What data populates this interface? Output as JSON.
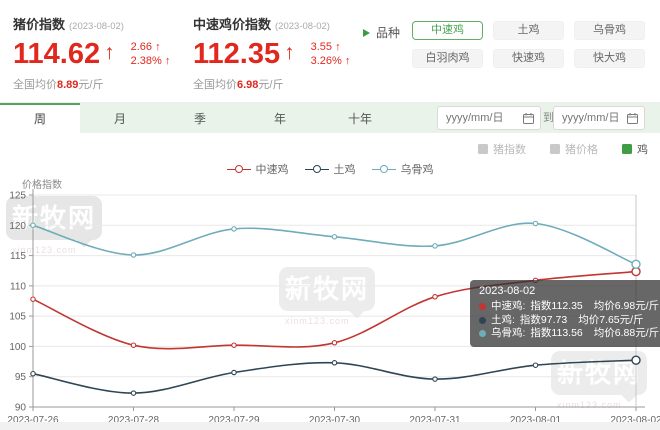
{
  "colors": {
    "accent_green": "#55a45a",
    "accent_red": "#e0281e",
    "grid": "#e8e8e8",
    "axis": "#999999"
  },
  "header": {
    "pig": {
      "title": "猪价指数",
      "date": "(2023-08-02)",
      "value": "114.62",
      "arrow": "↑",
      "delta": "2.66 ↑",
      "delta_pct": "2.38% ↑",
      "avg_label": "全国均价",
      "avg_value": "8.89",
      "avg_unit": "元/斤"
    },
    "chicken": {
      "title": "中速鸡价指数",
      "date": "(2023-08-02)",
      "value": "112.35",
      "arrow": "↑",
      "delta": "3.55 ↑",
      "delta_pct": "3.26% ↑",
      "avg_label": "全国均价",
      "avg_value": "6.98",
      "avg_unit": "元/斤"
    },
    "breed": {
      "label": "品种",
      "options": [
        {
          "label": "中速鸡",
          "active": true
        },
        {
          "label": "土鸡",
          "active": false
        },
        {
          "label": "乌骨鸡",
          "active": false
        },
        {
          "label": "白羽肉鸡",
          "active": false
        },
        {
          "label": "快速鸡",
          "active": false
        },
        {
          "label": "快大鸡",
          "active": false
        }
      ]
    }
  },
  "tabs": [
    {
      "label": "周",
      "active": true
    },
    {
      "label": "月",
      "active": false
    },
    {
      "label": "季",
      "active": false
    },
    {
      "label": "年",
      "active": false
    },
    {
      "label": "十年",
      "active": false
    }
  ],
  "date_filter": {
    "from_placeholder": "yyyy/mm/日",
    "to_label": "到",
    "to_placeholder": "yyyy/mm/日"
  },
  "toggles": [
    {
      "label": "猪指数",
      "checked": false
    },
    {
      "label": "猪价格",
      "checked": false
    },
    {
      "label": "鸡",
      "checked": true
    }
  ],
  "watermark": {
    "text": "新牧网",
    "url": "xinm123.com"
  },
  "tooltip": {
    "title": "2023-08-02",
    "rows": [
      {
        "name": "中速鸡:",
        "index": "指数112.35",
        "price": "均价6.98元/斤",
        "color": "#c23531"
      },
      {
        "name": "土鸡:",
        "index": "指数97.73",
        "price": "均价7.65元/斤",
        "color": "#2f4554"
      },
      {
        "name": "乌骨鸡:",
        "index": "指数113.56",
        "price": "均价6.88元/斤",
        "color": "#6fadba"
      }
    ]
  },
  "chart_data": {
    "type": "line",
    "title": "",
    "xlabel": "",
    "ylabel": "价格指数",
    "ylim": [
      90,
      125
    ],
    "ytick_step": 5,
    "grid": true,
    "smooth": true,
    "legend_position": "top",
    "categories": [
      "2023-07-26",
      "2023-07-28",
      "2023-07-29",
      "2023-07-30",
      "2023-07-31",
      "2023-08-01",
      "2023-08-02"
    ],
    "series": [
      {
        "name": "中速鸡",
        "color": "#c23531",
        "values": [
          107.8,
          100.2,
          100.2,
          100.6,
          108.2,
          110.9,
          112.35
        ]
      },
      {
        "name": "土鸡",
        "color": "#2f4554",
        "values": [
          95.5,
          92.3,
          95.7,
          97.3,
          94.6,
          96.9,
          97.73
        ]
      },
      {
        "name": "乌骨鸡",
        "color": "#6fadba",
        "values": [
          120.0,
          115.1,
          119.4,
          118.1,
          116.6,
          120.3,
          113.56
        ]
      }
    ],
    "hover_category": "2023-08-02"
  }
}
